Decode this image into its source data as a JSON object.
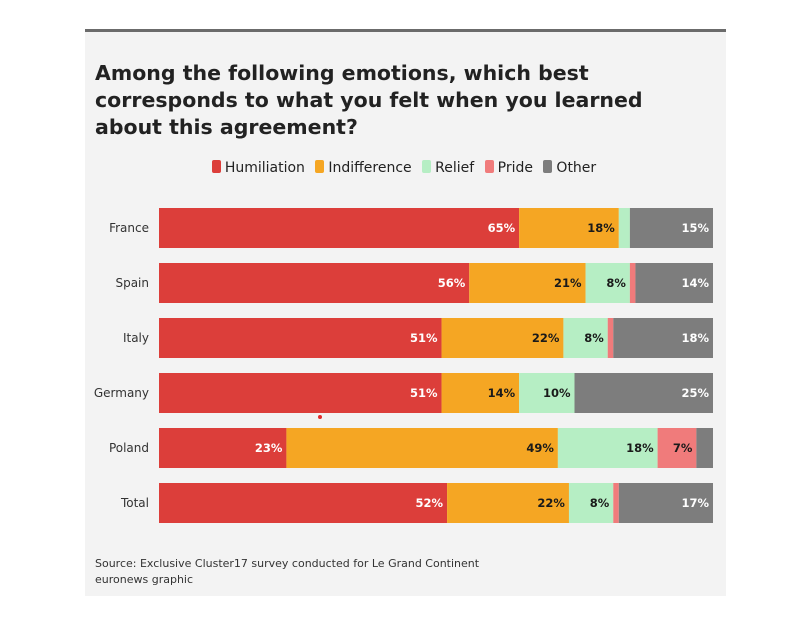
{
  "title": "Among the following emotions, which best corresponds to what you felt when you learned about this agreement?",
  "legend": [
    {
      "label": "Humiliation",
      "color": "#dc3e3a"
    },
    {
      "label": "Indifference",
      "color": "#f5a623"
    },
    {
      "label": "Relief",
      "color": "#b6eec4"
    },
    {
      "label": "Pride",
      "color": "#f07b7b"
    },
    {
      "label": "Other",
      "color": "#7d7d7d"
    }
  ],
  "chart_data": {
    "type": "bar",
    "orientation": "horizontal",
    "stacked": true,
    "title": "Among the following emotions, which best corresponds to what you felt when you learned about this agreement?",
    "categories": [
      "France",
      "Spain",
      "Italy",
      "Germany",
      "Poland",
      "Total"
    ],
    "series": [
      {
        "name": "Humiliation",
        "color": "#dc3e3a",
        "values": [
          65,
          56,
          51,
          51,
          23,
          52
        ],
        "labels": [
          "65%",
          "56%",
          "51%",
          "51%",
          "23%",
          "52%"
        ],
        "label_color": "#ffffff"
      },
      {
        "name": "Indifference",
        "color": "#f5a623",
        "values": [
          18,
          21,
          22,
          14,
          49,
          22
        ],
        "labels": [
          "18%",
          "21%",
          "22%",
          "14%",
          "49%",
          "22%"
        ],
        "label_color": "#1a1a1a"
      },
      {
        "name": "Relief",
        "color": "#b6eec4",
        "values": [
          2,
          8,
          8,
          10,
          18,
          8
        ],
        "labels": [
          "",
          "8%",
          "8%",
          "10%",
          "18%",
          "8%"
        ],
        "label_color": "#1a1a1a"
      },
      {
        "name": "Pride",
        "color": "#f07b7b",
        "values": [
          0,
          1,
          1,
          0,
          7,
          1
        ],
        "labels": [
          "",
          "",
          "",
          "",
          "7%",
          ""
        ],
        "label_color": "#1a1a1a"
      },
      {
        "name": "Other",
        "color": "#7d7d7d",
        "values": [
          15,
          14,
          18,
          25,
          3,
          17
        ],
        "labels": [
          "15%",
          "14%",
          "18%",
          "25%",
          "",
          "17%"
        ],
        "label_color": "#ffffff"
      }
    ],
    "xlim": [
      0,
      100
    ],
    "xlabel": "",
    "ylabel": "",
    "legend_position": "top-center"
  },
  "source": {
    "line1": "Source: Exclusive Cluster17 survey conducted for Le Grand Continent",
    "line2": "euronews graphic"
  }
}
